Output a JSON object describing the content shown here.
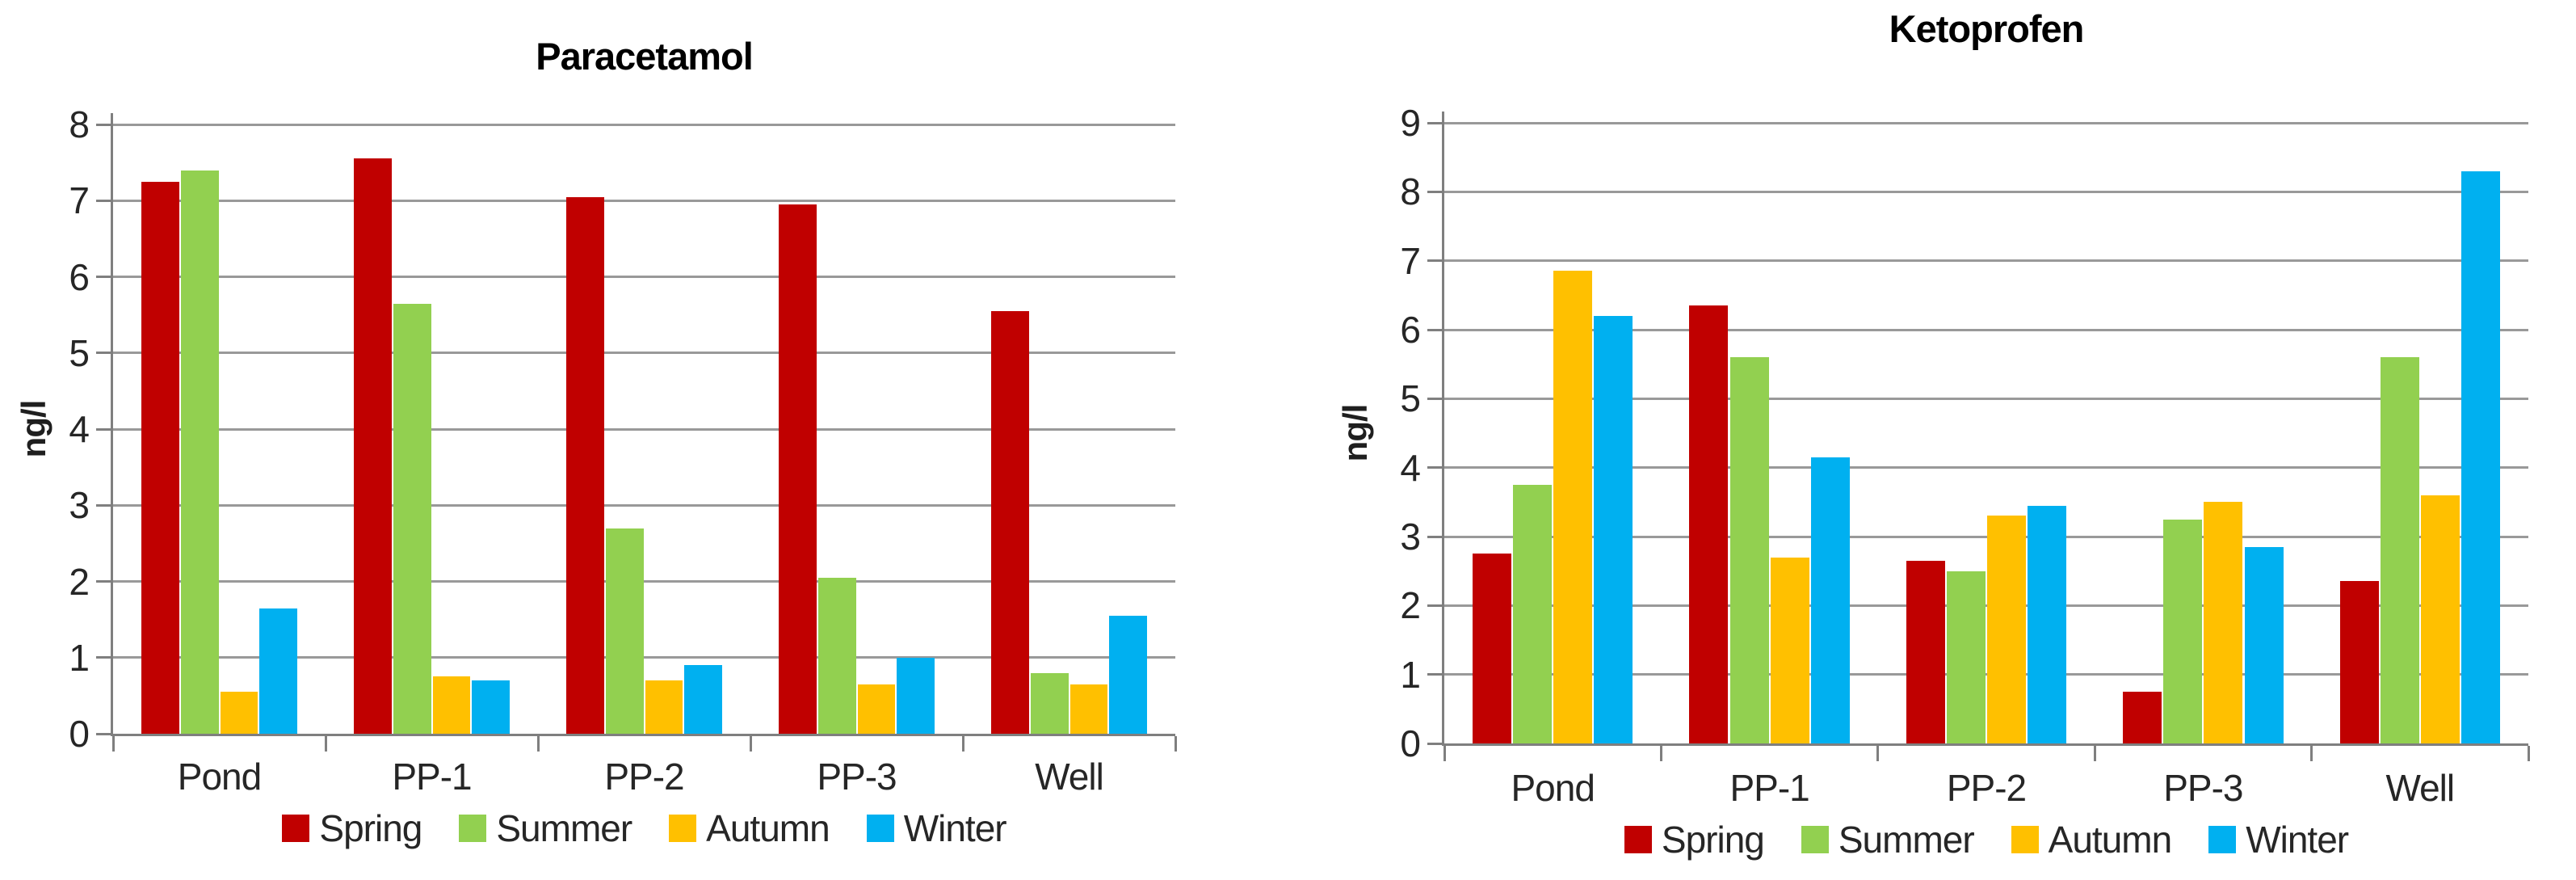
{
  "figure": {
    "background_color": "#FFFFFF",
    "description_colors": {
      "spring_red": "#C00000",
      "summer_green": "#92D050",
      "autumn_yellow": "#FFC000",
      "winter_blue": "#00B0F0",
      "gridline_gray": "#999999",
      "axis_gray": "#7F7F7F"
    }
  },
  "chart_data": [
    {
      "type": "bar",
      "title": "Paracetamol",
      "xlabel": "",
      "ylabel": "ng/l",
      "ylim": [
        0,
        8
      ],
      "yticks": [
        "0",
        "1",
        "2",
        "3",
        "4",
        "5",
        "6",
        "7",
        "8"
      ],
      "grid": true,
      "legend_position": "bottom",
      "categories": [
        "Pond",
        "PP-1",
        "PP-2",
        "PP-3",
        "Well"
      ],
      "series": [
        {
          "name": "Spring",
          "color": "#C00000",
          "values": [
            7.25,
            7.55,
            7.05,
            6.95,
            5.55
          ]
        },
        {
          "name": "Summer",
          "color": "#92D050",
          "values": [
            7.4,
            5.65,
            2.7,
            2.05,
            0.8
          ]
        },
        {
          "name": "Autumn",
          "color": "#FFC000",
          "values": [
            0.55,
            0.75,
            0.7,
            0.65,
            0.65
          ]
        },
        {
          "name": "Winter",
          "color": "#00B0F0",
          "values": [
            1.65,
            0.7,
            0.9,
            1.0,
            1.55
          ]
        }
      ]
    },
    {
      "type": "bar",
      "title": "Ketoprofen",
      "xlabel": "",
      "ylabel": "ng/l",
      "ylim": [
        0,
        9
      ],
      "yticks": [
        "0",
        "1",
        "2",
        "3",
        "4",
        "5",
        "6",
        "7",
        "8",
        "9"
      ],
      "grid": true,
      "legend_position": "bottom",
      "categories": [
        "Pond",
        "PP-1",
        "PP-2",
        "PP-3",
        "Well"
      ],
      "series": [
        {
          "name": "Spring",
          "color": "#C00000",
          "values": [
            2.75,
            6.35,
            2.65,
            0.75,
            2.35
          ]
        },
        {
          "name": "Summer",
          "color": "#92D050",
          "values": [
            3.75,
            5.6,
            2.5,
            3.25,
            5.6
          ]
        },
        {
          "name": "Autumn",
          "color": "#FFC000",
          "values": [
            6.85,
            2.7,
            3.3,
            3.5,
            3.6
          ]
        },
        {
          "name": "Winter",
          "color": "#00B0F0",
          "values": [
            6.2,
            4.15,
            3.45,
            2.85,
            8.3
          ]
        }
      ]
    }
  ]
}
